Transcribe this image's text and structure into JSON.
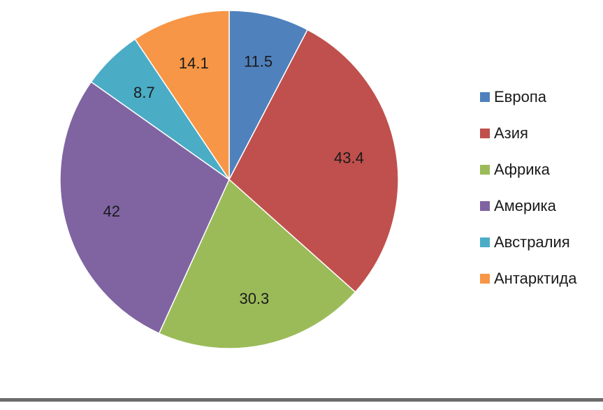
{
  "chart_data": {
    "type": "pie",
    "title": "",
    "start_angle_deg": 0,
    "direction": "clockwise",
    "legend_position": "right",
    "slices": [
      {
        "label": "Европа",
        "value": 11.5,
        "color": "#4f81bd"
      },
      {
        "label": "Азия",
        "value": 43.4,
        "color": "#c0504d"
      },
      {
        "label": "Африка",
        "value": 30.3,
        "color": "#9bbb59"
      },
      {
        "label": "Америка",
        "value": 42,
        "color": "#8064a2"
      },
      {
        "label": "Австралия",
        "value": 8.7,
        "color": "#4bacc6"
      },
      {
        "label": "Антарктида",
        "value": 14.1,
        "color": "#f79646"
      }
    ]
  }
}
